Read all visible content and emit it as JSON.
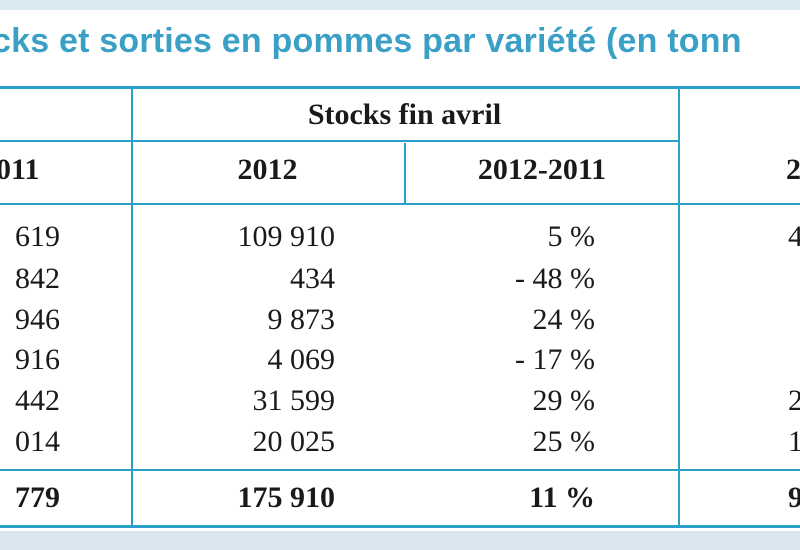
{
  "title": "cks et sorties en pommes par variété (en tonn",
  "group_header": "Stocks fin avril",
  "columns": [
    "011",
    "2012",
    "2012-2011",
    "2"
  ],
  "rows": [
    {
      "c2011": "619",
      "c2012": "109 910",
      "evo": "5 %",
      "right": "4"
    },
    {
      "c2011": "842",
      "c2012": "434",
      "evo": "- 48 %",
      "right": ""
    },
    {
      "c2011": "946",
      "c2012": "9 873",
      "evo": "24 %",
      "right": ""
    },
    {
      "c2011": "916",
      "c2012": "4 069",
      "evo": "- 17 %",
      "right": ""
    },
    {
      "c2011": "442",
      "c2012": "31 599",
      "evo": "29 %",
      "right": "2"
    },
    {
      "c2011": "014",
      "c2012": "20 025",
      "evo": "25 %",
      "right": "1"
    }
  ],
  "total": {
    "c2011": "779",
    "c2012": "175 910",
    "evo": "11 %",
    "right": "9"
  }
}
